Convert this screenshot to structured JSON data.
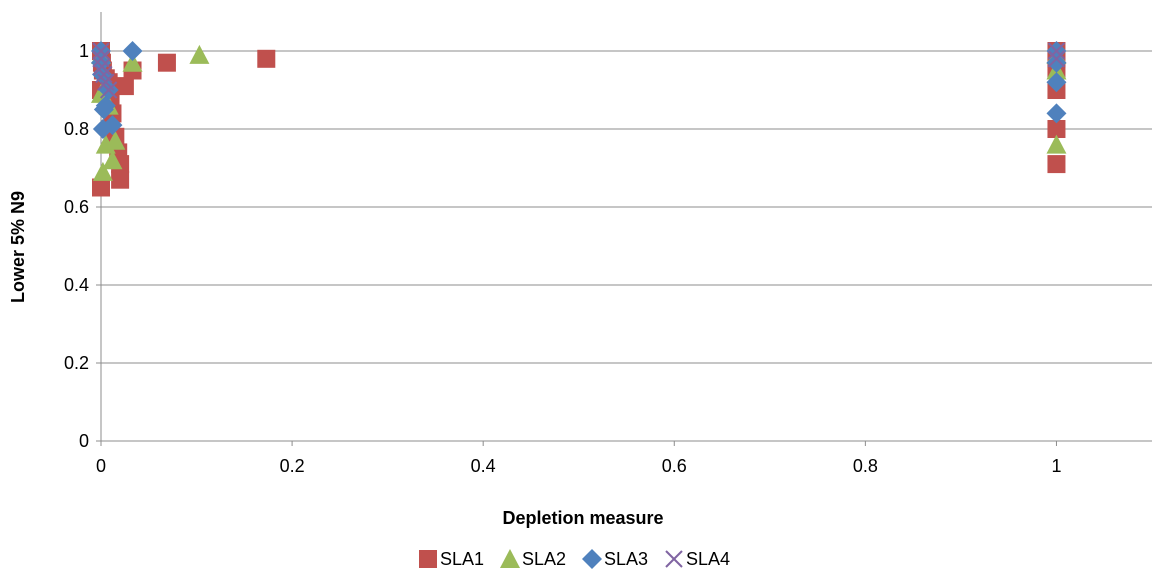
{
  "chart_data": {
    "type": "scatter",
    "title": "",
    "xlabel": "Depletion measure",
    "ylabel": "Lower 5% N9",
    "xlim": [
      0,
      1.1
    ],
    "ylim": [
      0,
      1.1
    ],
    "x_ticks": [
      "0",
      "0.2",
      "0.4",
      "0.6",
      "0.8",
      "1"
    ],
    "y_ticks": [
      "0",
      "0.2",
      "0.4",
      "0.6",
      "0.8",
      "1"
    ],
    "grid": "horizontal",
    "legend_position": "bottom",
    "series": [
      {
        "name": "SLA1",
        "marker": "square",
        "color": "#c0504d",
        "points": [
          [
            0.0,
            1.0
          ],
          [
            0.0,
            0.9
          ],
          [
            0.0,
            0.65
          ],
          [
            0.001,
            0.97
          ],
          [
            0.002,
            0.95
          ],
          [
            0.005,
            0.93
          ],
          [
            0.008,
            0.92
          ],
          [
            0.01,
            0.88
          ],
          [
            0.012,
            0.84
          ],
          [
            0.015,
            0.78
          ],
          [
            0.018,
            0.74
          ],
          [
            0.02,
            0.71
          ],
          [
            0.02,
            0.67
          ],
          [
            0.025,
            0.91
          ],
          [
            0.033,
            0.95
          ],
          [
            0.069,
            0.97
          ],
          [
            0.173,
            0.98
          ],
          [
            1.0,
            1.0
          ],
          [
            1.0,
            0.98
          ],
          [
            1.0,
            0.95
          ],
          [
            1.0,
            0.9
          ],
          [
            1.0,
            0.8
          ],
          [
            1.0,
            0.71
          ]
        ]
      },
      {
        "name": "SLA2",
        "marker": "triangle",
        "color": "#9bbb59",
        "points": [
          [
            0.0,
            0.99
          ],
          [
            0.0,
            0.89
          ],
          [
            0.002,
            0.69
          ],
          [
            0.005,
            0.76
          ],
          [
            0.008,
            0.86
          ],
          [
            0.012,
            0.72
          ],
          [
            0.015,
            0.77
          ],
          [
            0.033,
            0.97
          ],
          [
            0.103,
            0.99
          ],
          [
            1.0,
            0.99
          ],
          [
            1.0,
            0.95
          ],
          [
            1.0,
            0.76
          ]
        ]
      },
      {
        "name": "SLA3",
        "marker": "diamond",
        "color": "#4f81bd",
        "points": [
          [
            0.0,
            1.0
          ],
          [
            0.0,
            0.97
          ],
          [
            0.001,
            0.94
          ],
          [
            0.002,
            0.8
          ],
          [
            0.003,
            0.85
          ],
          [
            0.005,
            0.86
          ],
          [
            0.008,
            0.9
          ],
          [
            0.012,
            0.81
          ],
          [
            0.033,
            1.0
          ],
          [
            1.0,
            1.0
          ],
          [
            1.0,
            0.97
          ],
          [
            1.0,
            0.92
          ],
          [
            1.0,
            0.84
          ]
        ]
      },
      {
        "name": "SLA4",
        "marker": "x",
        "color": "#8064a2",
        "points": [
          [
            0.0,
            1.0
          ],
          [
            0.0,
            0.98
          ],
          [
            0.001,
            0.96
          ],
          [
            0.003,
            0.94
          ],
          [
            0.005,
            0.92
          ],
          [
            0.008,
            0.9
          ],
          [
            1.0,
            1.0
          ],
          [
            1.0,
            0.98
          ]
        ]
      }
    ]
  }
}
